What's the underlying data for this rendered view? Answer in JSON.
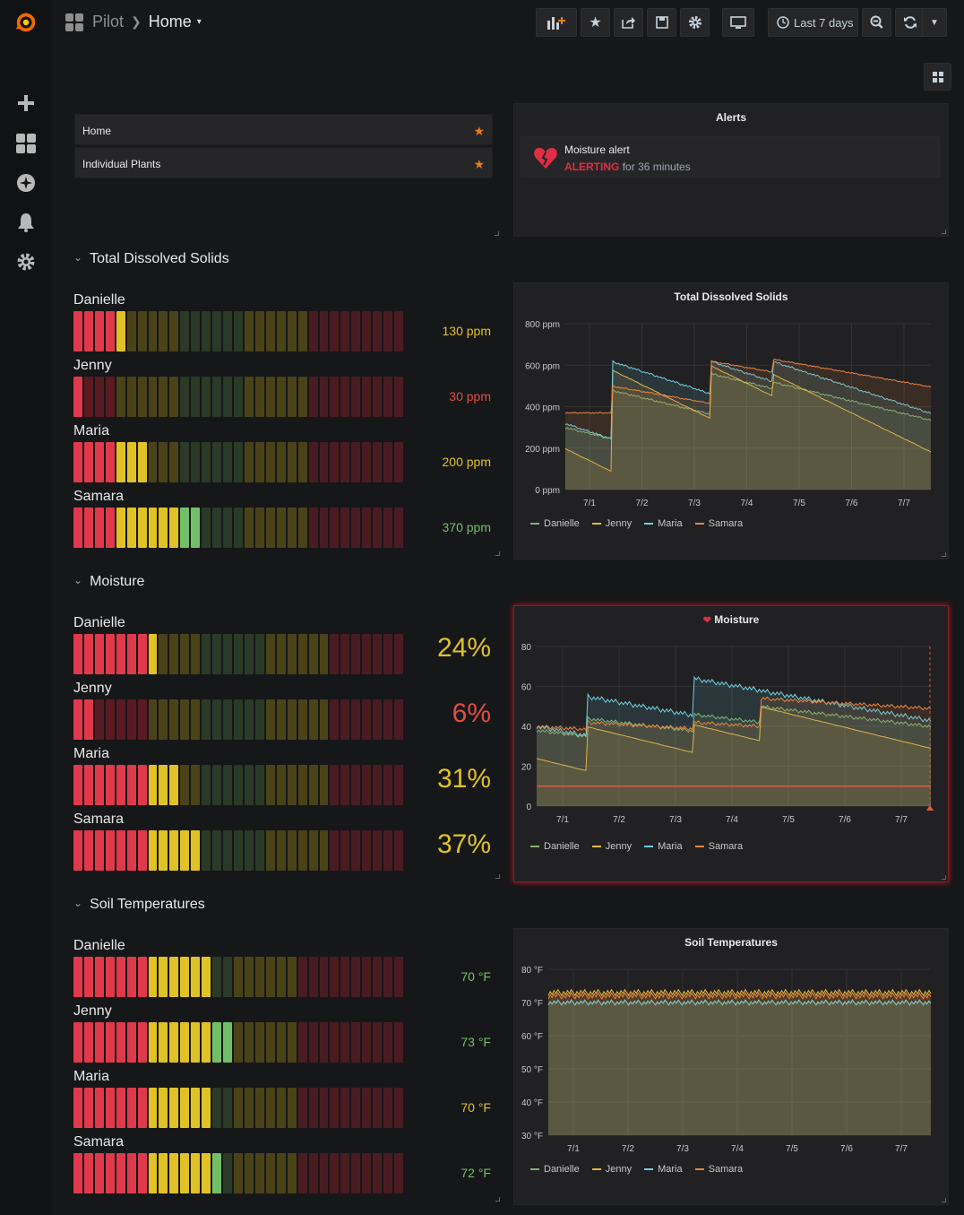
{
  "breadcrumb": {
    "folder": "Pilot",
    "dashboard": "Home"
  },
  "toolbar": {
    "time_range": "Last 7 days"
  },
  "dashlist": {
    "items": [
      {
        "label": "Home"
      },
      {
        "label": "Individual Plants"
      }
    ]
  },
  "alerts": {
    "title": "Alerts",
    "name": "Moisture alert",
    "state": "ALERTING",
    "duration": "for 36 minutes"
  },
  "sections": {
    "tds": {
      "title": "Total Dissolved Solids",
      "gauges": [
        {
          "name": "Danielle",
          "value": "130 ppm",
          "color": "#e0c227",
          "lit": 5,
          "size": "small"
        },
        {
          "name": "Jenny",
          "value": "30 ppm",
          "color": "#e24d42",
          "lit": 1,
          "size": "small"
        },
        {
          "name": "Maria",
          "value": "200 ppm",
          "color": "#e0c227",
          "lit": 7,
          "size": "small"
        },
        {
          "name": "Samara",
          "value": "370 ppm",
          "color": "#73bf69",
          "lit": 12,
          "size": "small"
        }
      ],
      "zones": [
        4,
        6,
        6,
        6,
        9
      ],
      "chart": {
        "title": "Total Dissolved Solids",
        "yticks": [
          "800 ppm",
          "600 ppm",
          "400 ppm",
          "200 ppm",
          "0 ppm"
        ],
        "xticks": [
          "7/1",
          "7/2",
          "7/3",
          "7/4",
          "7/5",
          "7/6",
          "7/7"
        ]
      }
    },
    "moisture": {
      "title": "Moisture",
      "gauges": [
        {
          "name": "Danielle",
          "value": "24%",
          "color": "#e0c227",
          "lit": 8,
          "size": "large"
        },
        {
          "name": "Jenny",
          "value": "6%",
          "color": "#e24d42",
          "lit": 2,
          "size": "large"
        },
        {
          "name": "Maria",
          "value": "31%",
          "color": "#e0c227",
          "lit": 10,
          "size": "large"
        },
        {
          "name": "Samara",
          "value": "37%",
          "color": "#e0c227",
          "lit": 12,
          "size": "large"
        }
      ],
      "zones": [
        7,
        5,
        6,
        6,
        7
      ],
      "chart": {
        "title": "Moisture",
        "yticks": [
          "80",
          "60",
          "40",
          "20",
          "0"
        ],
        "xticks": [
          "7/1",
          "7/2",
          "7/3",
          "7/4",
          "7/5",
          "7/6",
          "7/7"
        ]
      }
    },
    "temp": {
      "title": "Soil Temperatures",
      "gauges": [
        {
          "name": "Danielle",
          "value": "70 °F",
          "color": "#73bf69",
          "lit": 13,
          "size": "small"
        },
        {
          "name": "Jenny",
          "value": "73 °F",
          "color": "#73bf69",
          "lit": 15,
          "size": "small"
        },
        {
          "name": "Maria",
          "value": "70 °F",
          "color": "#e0c227",
          "lit": 13,
          "size": "small"
        },
        {
          "name": "Samara",
          "value": "72 °F",
          "color": "#73bf69",
          "lit": 14,
          "size": "small"
        }
      ],
      "zones": [
        7,
        6,
        2,
        6,
        10
      ],
      "chart": {
        "title": "Soil Temperatures",
        "yticks": [
          "80 °F",
          "70 °F",
          "60 °F",
          "50 °F",
          "40 °F",
          "30 °F"
        ],
        "xticks": [
          "7/1",
          "7/2",
          "7/3",
          "7/4",
          "7/5",
          "7/6",
          "7/7"
        ]
      }
    }
  },
  "legend": [
    {
      "name": "Danielle",
      "color": "#7eb26d"
    },
    {
      "name": "Jenny",
      "color": "#eab839"
    },
    {
      "name": "Maria",
      "color": "#6ed0e0"
    },
    {
      "name": "Samara",
      "color": "#ef843c"
    }
  ]
}
